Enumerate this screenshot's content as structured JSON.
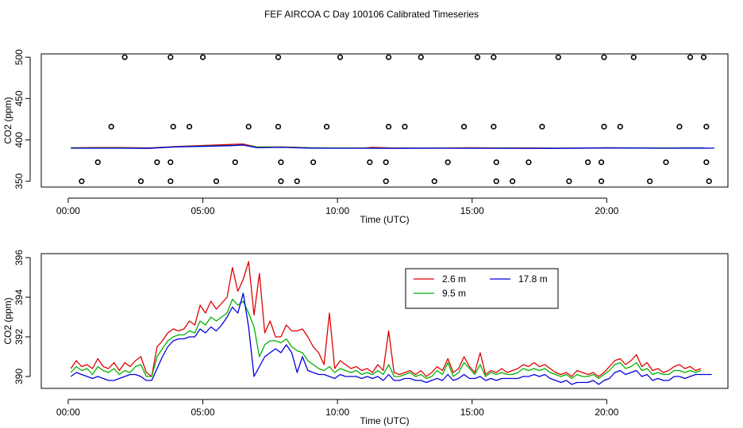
{
  "title": "FEF AIRCOA C  Day 100106  Calibrated Timeseries",
  "colors": {
    "red": "#e00000",
    "green": "#00b000",
    "blue": "#0000e0",
    "axis": "#000000"
  },
  "chart_data": [
    {
      "type": "line",
      "id": "top",
      "title": "",
      "xlabel": "Time (UTC)",
      "ylabel": "CO2 (ppm)",
      "xlim": [
        -1.0,
        24.5
      ],
      "ylim": [
        343,
        504
      ],
      "x_ticks": [
        0,
        5,
        10,
        15,
        20
      ],
      "x_tick_labels": [
        "00:00",
        "05:00",
        "10:00",
        "15:00",
        "20:00"
      ],
      "y_ticks": [
        350,
        400,
        450,
        500
      ],
      "y_tick_labels": [
        "350",
        "400",
        "450",
        "500"
      ],
      "grid": false,
      "series": [
        {
          "name": "2.6 m",
          "color": "red",
          "x": [
            0.1,
            1,
            2,
            3,
            4,
            5,
            6,
            6.5,
            7,
            8,
            9,
            10,
            11,
            11.3,
            12,
            13,
            14,
            15,
            16,
            17,
            18,
            19,
            20,
            21,
            22,
            23,
            23.6
          ],
          "values": [
            390.5,
            390.7,
            390.7,
            390.2,
            392.0,
            393.3,
            394.5,
            395.0,
            391.5,
            391.5,
            390.5,
            390.3,
            390.3,
            391.0,
            390.2,
            390.1,
            390.2,
            390.5,
            390.2,
            390.3,
            390.1,
            390.0,
            390.5,
            390.3,
            390.2,
            390.4,
            390.4
          ]
        },
        {
          "name": "9.5 m",
          "color": "green",
          "x": [
            0.1,
            2,
            3,
            4,
            5,
            6,
            6.5,
            7,
            8,
            9,
            10,
            12,
            14,
            16,
            18,
            20,
            22,
            23.6
          ],
          "values": [
            390.3,
            390.3,
            390.0,
            391.8,
            392.5,
            393.3,
            393.8,
            391.2,
            391.3,
            390.3,
            390.2,
            390.0,
            390.1,
            390.1,
            390.0,
            390.4,
            390.2,
            390.3
          ]
        },
        {
          "name": "17.8 m",
          "color": "blue",
          "x": [
            0.1,
            2,
            3,
            4,
            5,
            6,
            6.5,
            7,
            8,
            9,
            10,
            12,
            14,
            16,
            18,
            20,
            22,
            24
          ],
          "values": [
            390.0,
            390.0,
            389.8,
            391.6,
            392.2,
            393.0,
            393.8,
            390.5,
            391.0,
            390.0,
            390.0,
            389.9,
            390.0,
            389.9,
            389.8,
            390.2,
            390.0,
            390.1
          ]
        }
      ],
      "flags": {
        "marker": "open-circle",
        "x": [
          2.1,
          3.8,
          5.0,
          7.8,
          10.1,
          11.9,
          13.1,
          15.2,
          15.8,
          18.2,
          19.9,
          21.0,
          23.1,
          23.6,
          1.6,
          3.9,
          4.5,
          6.7,
          7.8,
          9.6,
          11.9,
          12.5,
          14.7,
          15.8,
          17.6,
          19.9,
          20.5,
          22.7,
          23.7,
          1.1,
          3.3,
          3.8,
          6.2,
          7.9,
          9.1,
          11.2,
          11.8,
          14.1,
          15.9,
          17.1,
          19.3,
          19.8,
          22.2,
          23.7,
          0.5,
          2.7,
          3.8,
          5.5,
          7.9,
          8.5,
          11.8,
          13.6,
          15.9,
          16.5,
          18.6,
          19.8,
          21.6,
          23.8
        ],
        "values": [
          500,
          500,
          500,
          500,
          500,
          500,
          500,
          500,
          500,
          500,
          500,
          500,
          500,
          500,
          416,
          416,
          416,
          416,
          416,
          416,
          416,
          416,
          416,
          416,
          416,
          416,
          416,
          416,
          416,
          373,
          373,
          373,
          373,
          373,
          373,
          373,
          373,
          373,
          373,
          373,
          373,
          373,
          373,
          373,
          350,
          350,
          350,
          350,
          350,
          350,
          350,
          350,
          350,
          350,
          350,
          350,
          350,
          350
        ]
      }
    },
    {
      "type": "line",
      "id": "bottom",
      "title": "",
      "xlabel": "Time (UTC)",
      "ylabel": "CO2 (ppm)",
      "xlim": [
        -1.0,
        24.5
      ],
      "ylim": [
        389.4,
        396.2
      ],
      "x_ticks": [
        0,
        5,
        10,
        15,
        20
      ],
      "x_tick_labels": [
        "00:00",
        "05:00",
        "10:00",
        "15:00",
        "20:00"
      ],
      "y_ticks": [
        390,
        392,
        394,
        396
      ],
      "y_tick_labels": [
        "390",
        "392",
        "394",
        "396"
      ],
      "grid": false,
      "legend": {
        "placement": "top-right-inner",
        "columns": 2
      },
      "series": [
        {
          "name": "2.6 m",
          "color": "red",
          "x": [
            0.1,
            0.3,
            0.5,
            0.7,
            0.9,
            1.1,
            1.3,
            1.5,
            1.7,
            1.9,
            2.1,
            2.3,
            2.5,
            2.7,
            2.9,
            3.1,
            3.3,
            3.5,
            3.7,
            3.9,
            4.1,
            4.3,
            4.5,
            4.7,
            4.9,
            5.1,
            5.3,
            5.5,
            5.7,
            5.9,
            6.1,
            6.3,
            6.5,
            6.7,
            6.9,
            7.1,
            7.3,
            7.5,
            7.7,
            7.9,
            8.1,
            8.3,
            8.5,
            8.7,
            8.9,
            9.1,
            9.3,
            9.5,
            9.7,
            9.9,
            10.1,
            10.3,
            10.5,
            10.7,
            10.9,
            11.1,
            11.3,
            11.5,
            11.7,
            11.9,
            12.1,
            12.3,
            12.5,
            12.7,
            12.9,
            13.1,
            13.3,
            13.5,
            13.7,
            13.9,
            14.1,
            14.3,
            14.5,
            14.7,
            14.9,
            15.1,
            15.3,
            15.5,
            15.7,
            15.9,
            16.1,
            16.3,
            16.5,
            16.7,
            16.9,
            17.1,
            17.3,
            17.5,
            17.7,
            17.9,
            18.1,
            18.3,
            18.5,
            18.7,
            18.9,
            19.1,
            19.3,
            19.5,
            19.7,
            19.9,
            20.1,
            20.3,
            20.5,
            20.7,
            20.9,
            21.1,
            21.3,
            21.5,
            21.7,
            21.9,
            22.1,
            22.3,
            22.5,
            22.7,
            22.9,
            23.1,
            23.3,
            23.5
          ],
          "values": [
            390.4,
            390.8,
            390.5,
            390.6,
            390.4,
            390.9,
            390.5,
            390.4,
            390.7,
            390.3,
            390.7,
            390.5,
            390.8,
            391.0,
            390.2,
            390.0,
            391.5,
            391.8,
            392.2,
            392.4,
            392.3,
            392.4,
            392.8,
            392.6,
            393.6,
            393.2,
            393.8,
            393.4,
            393.7,
            394.0,
            395.5,
            394.3,
            394.9,
            395.8,
            393.1,
            395.2,
            392.2,
            392.8,
            392.0,
            392.0,
            392.6,
            392.3,
            392.3,
            392.4,
            392.0,
            391.5,
            391.2,
            390.6,
            393.2,
            390.4,
            390.8,
            390.6,
            390.4,
            390.5,
            390.3,
            390.4,
            390.2,
            390.6,
            390.3,
            392.3,
            390.2,
            390.1,
            390.2,
            390.3,
            390.1,
            390.3,
            390.0,
            390.2,
            390.5,
            390.3,
            390.9,
            390.2,
            390.4,
            391.0,
            390.5,
            390.2,
            391.2,
            390.1,
            390.3,
            390.2,
            390.4,
            390.2,
            390.3,
            390.4,
            390.6,
            390.5,
            390.7,
            390.5,
            390.6,
            390.4,
            390.2,
            390.1,
            390.2,
            390.0,
            390.3,
            390.2,
            390.1,
            390.2,
            390.0,
            390.2,
            390.5,
            390.8,
            390.9,
            390.6,
            390.8,
            391.1,
            390.5,
            390.7,
            390.3,
            390.4,
            390.2,
            390.3,
            390.5,
            390.6,
            390.4,
            390.5,
            390.3,
            390.4
          ],
          "comment": ""
        },
        {
          "name": "9.5 m",
          "color": "green",
          "x": [
            0.1,
            0.3,
            0.5,
            0.7,
            0.9,
            1.1,
            1.3,
            1.5,
            1.7,
            1.9,
            2.1,
            2.3,
            2.5,
            2.7,
            2.9,
            3.1,
            3.3,
            3.5,
            3.7,
            3.9,
            4.1,
            4.3,
            4.5,
            4.7,
            4.9,
            5.1,
            5.3,
            5.5,
            5.7,
            5.9,
            6.1,
            6.3,
            6.5,
            6.7,
            6.9,
            7.1,
            7.3,
            7.5,
            7.7,
            7.9,
            8.1,
            8.3,
            8.5,
            8.7,
            8.9,
            9.1,
            9.3,
            9.5,
            9.7,
            9.9,
            10.1,
            10.3,
            10.5,
            10.7,
            10.9,
            11.1,
            11.3,
            11.5,
            11.7,
            11.9,
            12.1,
            12.3,
            12.5,
            12.7,
            12.9,
            13.1,
            13.3,
            13.5,
            13.7,
            13.9,
            14.1,
            14.3,
            14.5,
            14.7,
            14.9,
            15.1,
            15.3,
            15.5,
            15.7,
            15.9,
            16.1,
            16.3,
            16.5,
            16.7,
            16.9,
            17.1,
            17.3,
            17.5,
            17.7,
            17.9,
            18.1,
            18.3,
            18.5,
            18.7,
            18.9,
            19.1,
            19.3,
            19.5,
            19.7,
            19.9,
            20.1,
            20.3,
            20.5,
            20.7,
            20.9,
            21.1,
            21.3,
            21.5,
            21.7,
            21.9,
            22.1,
            22.3,
            22.5,
            22.7,
            22.9,
            23.1,
            23.3,
            23.5
          ],
          "values": [
            390.2,
            390.5,
            390.3,
            390.4,
            390.1,
            390.5,
            390.3,
            390.2,
            390.4,
            390.1,
            390.3,
            390.2,
            390.5,
            390.6,
            390.0,
            390.0,
            391.0,
            391.4,
            391.8,
            392.0,
            392.1,
            392.1,
            392.3,
            392.2,
            392.8,
            392.6,
            393.0,
            392.8,
            393.0,
            393.2,
            393.9,
            393.6,
            393.8,
            393.2,
            392.5,
            391.0,
            391.6,
            391.8,
            391.8,
            391.7,
            391.9,
            391.5,
            391.3,
            391.2,
            390.8,
            390.6,
            390.4,
            390.3,
            390.5,
            390.2,
            390.4,
            390.3,
            390.2,
            390.3,
            390.1,
            390.2,
            390.1,
            390.3,
            390.1,
            390.6,
            390.0,
            390.0,
            390.1,
            390.2,
            390.0,
            390.1,
            389.9,
            390.0,
            390.3,
            390.1,
            390.7,
            390.0,
            390.2,
            390.7,
            390.4,
            390.1,
            390.6,
            390.0,
            390.2,
            390.1,
            390.2,
            390.1,
            390.1,
            390.2,
            390.4,
            390.3,
            390.4,
            390.3,
            390.4,
            390.2,
            390.1,
            390.0,
            390.1,
            389.9,
            390.1,
            390.0,
            390.0,
            390.1,
            389.9,
            390.1,
            390.3,
            390.6,
            390.7,
            390.4,
            390.5,
            390.7,
            390.3,
            390.4,
            390.1,
            390.2,
            390.1,
            390.1,
            390.3,
            390.3,
            390.2,
            390.3,
            390.2,
            390.3
          ]
        },
        {
          "name": "17.8 m",
          "color": "blue",
          "x": [
            0.1,
            0.3,
            0.5,
            0.7,
            0.9,
            1.1,
            1.3,
            1.5,
            1.7,
            1.9,
            2.1,
            2.3,
            2.5,
            2.7,
            2.9,
            3.1,
            3.3,
            3.5,
            3.7,
            3.9,
            4.1,
            4.3,
            4.5,
            4.7,
            4.9,
            5.1,
            5.3,
            5.5,
            5.7,
            5.9,
            6.1,
            6.3,
            6.5,
            6.7,
            6.9,
            7.1,
            7.3,
            7.5,
            7.7,
            7.9,
            8.1,
            8.3,
            8.5,
            8.7,
            8.9,
            9.1,
            9.3,
            9.5,
            9.7,
            9.9,
            10.1,
            10.3,
            10.5,
            10.7,
            10.9,
            11.1,
            11.3,
            11.5,
            11.7,
            11.9,
            12.1,
            12.3,
            12.5,
            12.7,
            12.9,
            13.1,
            13.3,
            13.5,
            13.7,
            13.9,
            14.1,
            14.3,
            14.5,
            14.7,
            14.9,
            15.1,
            15.3,
            15.5,
            15.7,
            15.9,
            16.1,
            16.3,
            16.5,
            16.7,
            16.9,
            17.1,
            17.3,
            17.5,
            17.7,
            17.9,
            18.1,
            18.3,
            18.5,
            18.7,
            18.9,
            19.1,
            19.3,
            19.5,
            19.7,
            19.9,
            20.1,
            20.3,
            20.5,
            20.7,
            20.9,
            21.1,
            21.3,
            21.5,
            21.7,
            21.9,
            22.1,
            22.3,
            22.5,
            22.7,
            22.9,
            23.1,
            23.3,
            23.5,
            23.7,
            23.9
          ],
          "values": [
            390.0,
            390.2,
            390.1,
            390.0,
            389.9,
            390.0,
            389.9,
            389.8,
            389.8,
            389.9,
            390.0,
            390.1,
            390.1,
            390.0,
            389.8,
            389.8,
            390.4,
            391.0,
            391.5,
            391.8,
            391.9,
            391.9,
            392.0,
            392.0,
            392.4,
            392.2,
            392.5,
            392.3,
            392.6,
            393.0,
            393.5,
            393.2,
            394.2,
            392.5,
            390.0,
            390.5,
            391.0,
            391.2,
            391.4,
            391.2,
            391.6,
            391.2,
            390.2,
            391.0,
            390.3,
            390.2,
            390.1,
            390.1,
            390.0,
            389.9,
            390.1,
            390.0,
            390.0,
            390.0,
            389.9,
            390.0,
            389.9,
            390.0,
            389.8,
            390.1,
            389.8,
            389.8,
            389.9,
            389.9,
            389.8,
            389.8,
            389.7,
            389.8,
            389.9,
            389.8,
            390.1,
            389.8,
            389.9,
            390.1,
            389.9,
            389.9,
            390.0,
            389.8,
            389.9,
            389.8,
            389.9,
            389.9,
            389.9,
            389.9,
            390.0,
            390.0,
            390.1,
            390.0,
            390.1,
            389.9,
            389.8,
            389.7,
            389.8,
            389.6,
            389.7,
            389.7,
            389.7,
            389.8,
            389.6,
            389.8,
            389.9,
            390.2,
            390.3,
            390.1,
            390.2,
            390.3,
            390.0,
            390.1,
            389.8,
            389.9,
            389.8,
            389.8,
            390.0,
            390.0,
            389.9,
            390.0,
            390.1,
            390.1,
            390.1,
            390.1
          ]
        }
      ]
    }
  ]
}
